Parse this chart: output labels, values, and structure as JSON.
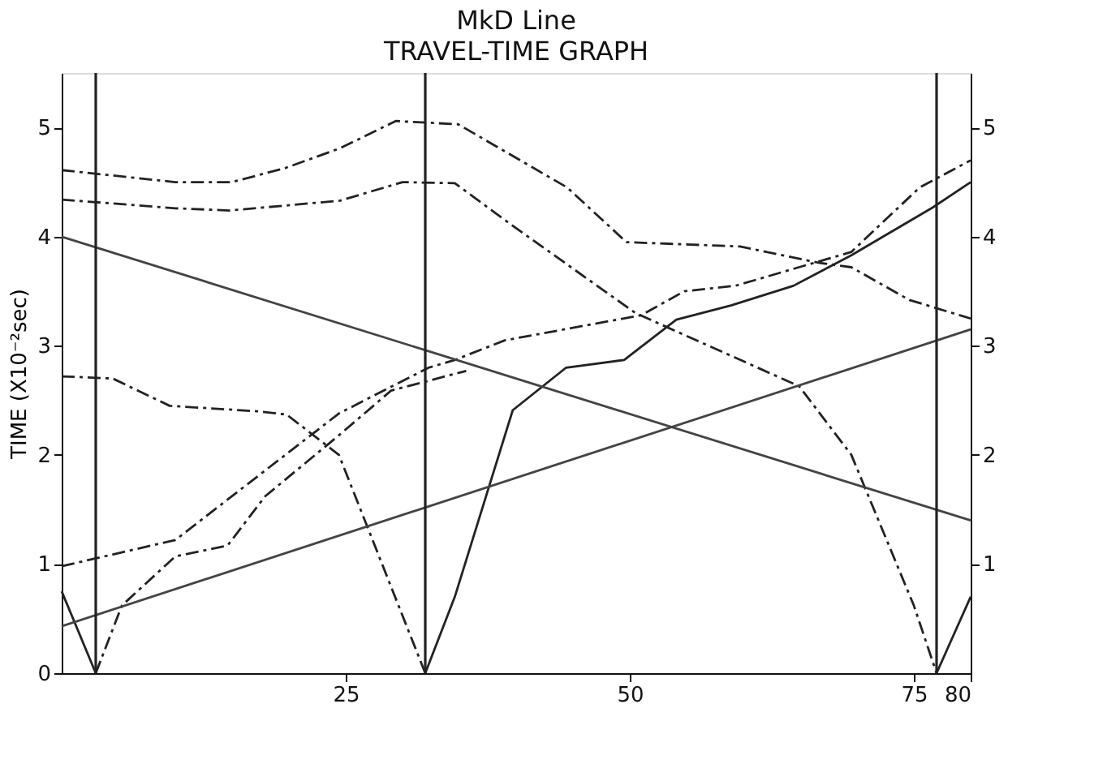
{
  "chart_data": {
    "type": "line",
    "title": "MkD Line",
    "subtitle": "TRAVEL-TIME GRAPH",
    "ylabel": "TIME (X10⁻²sec)",
    "xlim": [
      0,
      80
    ],
    "xticks": [
      25,
      50,
      75,
      80
    ],
    "ylim": [
      0,
      5.5
    ],
    "yticks": [
      0,
      1,
      2,
      3,
      4,
      5
    ],
    "y2lim": [
      0,
      5.5
    ],
    "y2ticks": [
      1,
      2,
      3,
      4,
      5
    ],
    "grid": false,
    "legend": false,
    "marker": "none",
    "series": [
      {
        "color": "#222222",
        "line_style": "dashed",
        "x": [
          0,
          10,
          15,
          19.7,
          24.5,
          29.4,
          34.9,
          44.5,
          49.7,
          59.7,
          66.7,
          69.5,
          74.6,
          80
        ],
        "values": [
          4.61,
          4.5,
          4.5,
          4.63,
          4.81,
          5.06,
          5.03,
          4.45,
          3.95,
          3.91,
          3.76,
          3.72,
          3.42,
          3.25
        ]
      },
      {
        "color": "#222222",
        "line_style": "dashed",
        "x": [
          0,
          10,
          14.8,
          24.5,
          30,
          34.6,
          39.7,
          50.5,
          64.9,
          69.5,
          75,
          77
        ],
        "values": [
          4.34,
          4.26,
          4.24,
          4.33,
          4.5,
          4.49,
          4.1,
          3.3,
          2.63,
          2.0,
          0.62,
          0
        ]
      },
      {
        "color": "#222222",
        "line_style": "dashed",
        "x": [
          0,
          10,
          24.4,
          32.3,
          34.6,
          39,
          51,
          54.8,
          59.3,
          69.5,
          75.5,
          80
        ],
        "values": [
          0.98,
          1.22,
          2.38,
          2.8,
          2.87,
          3.05,
          3.28,
          3.5,
          3.55,
          3.86,
          4.45,
          4.7
        ]
      },
      {
        "color": "#222222",
        "line_style": "dashed",
        "x": [
          3,
          5.3,
          10,
          14.6,
          17.9,
          24.4,
          29,
          32.3,
          35.6
        ],
        "values": [
          0,
          0.62,
          1.07,
          1.17,
          1.62,
          2.18,
          2.59,
          2.68,
          2.77
        ]
      },
      {
        "color": "#222222",
        "line_style": "solid",
        "x": [
          32,
          34.6,
          39.7,
          44.4,
          49.5,
          54.1,
          58.9,
          64.4,
          69.5,
          76.7,
          80
        ],
        "values": [
          0,
          0.7,
          2.41,
          2.8,
          2.87,
          3.24,
          3.37,
          3.55,
          3.83,
          4.27,
          4.5
        ]
      },
      {
        "color": "#222222",
        "line_style": "dashed",
        "x": [
          0,
          4.5,
          9.5,
          17.2,
          19.8,
          24.4,
          32
        ],
        "values": [
          2.72,
          2.7,
          2.45,
          2.4,
          2.37,
          2.0,
          0
        ]
      },
      {
        "color": "#222222",
        "line_style": "solid",
        "x": [
          0,
          3
        ],
        "values": [
          0.75,
          0
        ]
      },
      {
        "color": "#222222",
        "line_style": "solid",
        "x": [
          77,
          80
        ],
        "values": [
          0,
          0.7
        ]
      },
      {
        "color": "#444444",
        "line_style": "solid",
        "x": [
          0,
          80
        ],
        "values": [
          4.0,
          1.4
        ]
      },
      {
        "color": "#444444",
        "line_style": "solid",
        "x": [
          0,
          80
        ],
        "values": [
          0.43,
          3.15
        ]
      }
    ],
    "ref_lines": [
      {
        "axis": "x",
        "value": 3,
        "color": "#222222"
      },
      {
        "axis": "x",
        "value": 32,
        "color": "#222222"
      },
      {
        "axis": "x",
        "value": 77,
        "color": "#222222"
      }
    ]
  }
}
